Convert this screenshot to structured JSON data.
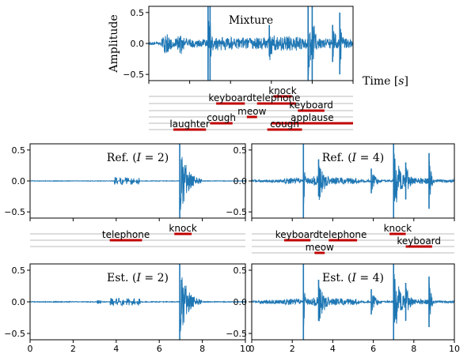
{
  "chart_data": [
    {
      "id": "mixture",
      "type": "line",
      "title": "Mixture",
      "ylabel": "Amplitude",
      "xlabel": "Time [s]",
      "xlim": [
        0,
        10
      ],
      "ylim": [
        -0.6,
        0.6
      ],
      "yticks": [
        0.5,
        0.0,
        -0.5
      ],
      "ytick_labels": [
        "0.5",
        "0.0",
        "−0.5"
      ],
      "color": "#1f77b4",
      "events": [
        {
          "name": "knock",
          "start": 6.1,
          "end": 7.0
        },
        {
          "name": "keyboard",
          "start": 3.3,
          "end": 4.7
        },
        {
          "name": "telephone",
          "start": 5.3,
          "end": 7.2
        },
        {
          "name": "keyboard",
          "start": 7.3,
          "end": 8.6
        },
        {
          "name": "meow",
          "start": 4.8,
          "end": 5.3
        },
        {
          "name": "applause",
          "start": 6.0,
          "end": 10.0
        },
        {
          "name": "cough",
          "start": 3.0,
          "end": 4.1
        },
        {
          "name": "cough",
          "start": 5.8,
          "end": 7.5
        },
        {
          "name": "laughter",
          "start": 1.2,
          "end": 2.8
        }
      ]
    },
    {
      "id": "ref2",
      "type": "line",
      "title": "Ref. (I = 2)",
      "xlim": [
        0,
        10
      ],
      "ylim": [
        -0.6,
        0.6
      ],
      "yticks": [
        0.5,
        0.0,
        -0.5
      ],
      "ytick_labels": [
        "0.5",
        "0.0",
        "−0.5"
      ],
      "color": "#1f77b4",
      "events": [
        {
          "name": "telephone",
          "start": 3.7,
          "end": 5.2
        },
        {
          "name": "knock",
          "start": 6.7,
          "end": 7.5
        }
      ]
    },
    {
      "id": "ref4",
      "type": "line",
      "title": "Ref. (I = 4)",
      "xlim": [
        0,
        10
      ],
      "ylim": [
        -0.6,
        0.6
      ],
      "yticks": [
        0.5,
        0.0,
        -0.5
      ],
      "ytick_labels": [
        "0.5",
        "0.0",
        "−0.5"
      ],
      "color": "#1f77b4",
      "events": [
        {
          "name": "knock",
          "start": 6.8,
          "end": 7.6
        },
        {
          "name": "keyboard",
          "start": 1.6,
          "end": 2.9
        },
        {
          "name": "telephone",
          "start": 3.8,
          "end": 5.2
        },
        {
          "name": "keyboard",
          "start": 7.6,
          "end": 8.9
        },
        {
          "name": "meow",
          "start": 3.1,
          "end": 3.6
        }
      ]
    },
    {
      "id": "est2",
      "type": "line",
      "title": "Est. (I = 2)",
      "xlim": [
        0,
        10
      ],
      "ylim": [
        -0.6,
        0.6
      ],
      "xticks": [
        0,
        2,
        4,
        6,
        8,
        10
      ],
      "xtick_labels": [
        "0",
        "2",
        "4",
        "6",
        "8",
        "10"
      ],
      "yticks": [
        0.5,
        0.0,
        -0.5
      ],
      "ytick_labels": [
        "0.5",
        "0.0",
        "−0.5"
      ],
      "color": "#1f77b4"
    },
    {
      "id": "est4",
      "type": "line",
      "title": "Est. (I = 4)",
      "xlim": [
        0,
        10
      ],
      "ylim": [
        -0.6,
        0.6
      ],
      "xticks": [
        0,
        2,
        4,
        6,
        8,
        10
      ],
      "xtick_labels": [
        "0",
        "2",
        "4",
        "6",
        "8",
        "10"
      ],
      "yticks": [
        0.5,
        0.0,
        -0.5
      ],
      "ytick_labels": [
        "0.5",
        "0.0",
        "−0.5"
      ],
      "color": "#1f77b4"
    }
  ],
  "colors": {
    "waveform": "#1f77b4",
    "event_bar": "#c00000",
    "track_line": "#bbbbbb"
  }
}
